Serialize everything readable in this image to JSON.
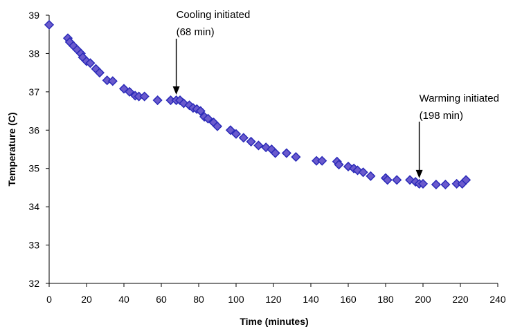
{
  "chart_data": {
    "type": "scatter",
    "title": "",
    "xlabel": "Time (minutes)",
    "ylabel": "Temperature (C)",
    "xlim": [
      0,
      240
    ],
    "ylim": [
      32,
      39
    ],
    "x_ticks": [
      0,
      20,
      40,
      60,
      80,
      100,
      120,
      140,
      160,
      180,
      200,
      220,
      240
    ],
    "y_ticks": [
      32,
      33,
      34,
      35,
      36,
      37,
      38,
      39
    ],
    "grid": false,
    "legend": "none",
    "marker": "diamond",
    "colors": {
      "marker_fill": "#6a5acd",
      "marker_edge": "#2b2bb8",
      "axis": "#000000"
    },
    "series": [
      {
        "points": [
          [
            0,
            38.75
          ],
          [
            10,
            38.4
          ],
          [
            11,
            38.3
          ],
          [
            13,
            38.2
          ],
          [
            15,
            38.1
          ],
          [
            17,
            38.0
          ],
          [
            18,
            37.9
          ],
          [
            20,
            37.8
          ],
          [
            22,
            37.75
          ],
          [
            25,
            37.6
          ],
          [
            27,
            37.5
          ],
          [
            31,
            37.3
          ],
          [
            34,
            37.28
          ],
          [
            40,
            37.08
          ],
          [
            43,
            37.0
          ],
          [
            46,
            36.9
          ],
          [
            48,
            36.88
          ],
          [
            51,
            36.88
          ],
          [
            58,
            36.78
          ],
          [
            65,
            36.78
          ],
          [
            68,
            36.78
          ],
          [
            70,
            36.78
          ],
          [
            72,
            36.7
          ],
          [
            75,
            36.65
          ],
          [
            77,
            36.58
          ],
          [
            79,
            36.55
          ],
          [
            81,
            36.5
          ],
          [
            83,
            36.35
          ],
          [
            85,
            36.3
          ],
          [
            88,
            36.2
          ],
          [
            90,
            36.1
          ],
          [
            97,
            36.0
          ],
          [
            100,
            35.9
          ],
          [
            104,
            35.8
          ],
          [
            108,
            35.7
          ],
          [
            112,
            35.6
          ],
          [
            116,
            35.55
          ],
          [
            119,
            35.5
          ],
          [
            121,
            35.4
          ],
          [
            127,
            35.4
          ],
          [
            132,
            35.3
          ],
          [
            143,
            35.2
          ],
          [
            146,
            35.2
          ],
          [
            154,
            35.18
          ],
          [
            155,
            35.1
          ],
          [
            160,
            35.05
          ],
          [
            163,
            35.0
          ],
          [
            165,
            34.95
          ],
          [
            168,
            34.9
          ],
          [
            172,
            34.8
          ],
          [
            180,
            34.75
          ],
          [
            181,
            34.7
          ],
          [
            186,
            34.7
          ],
          [
            193,
            34.7
          ],
          [
            196,
            34.65
          ],
          [
            198,
            34.6
          ],
          [
            200,
            34.6
          ],
          [
            207,
            34.58
          ],
          [
            212,
            34.58
          ],
          [
            218,
            34.6
          ],
          [
            221,
            34.6
          ],
          [
            223,
            34.7
          ]
        ]
      }
    ],
    "annotations": [
      {
        "line1": "Cooling initiated",
        "line2": "(68 min)",
        "x": 68,
        "y": 36.78
      },
      {
        "line1": "Warming initiated",
        "line2": "(198 min)",
        "x": 198,
        "y": 34.6
      }
    ]
  }
}
